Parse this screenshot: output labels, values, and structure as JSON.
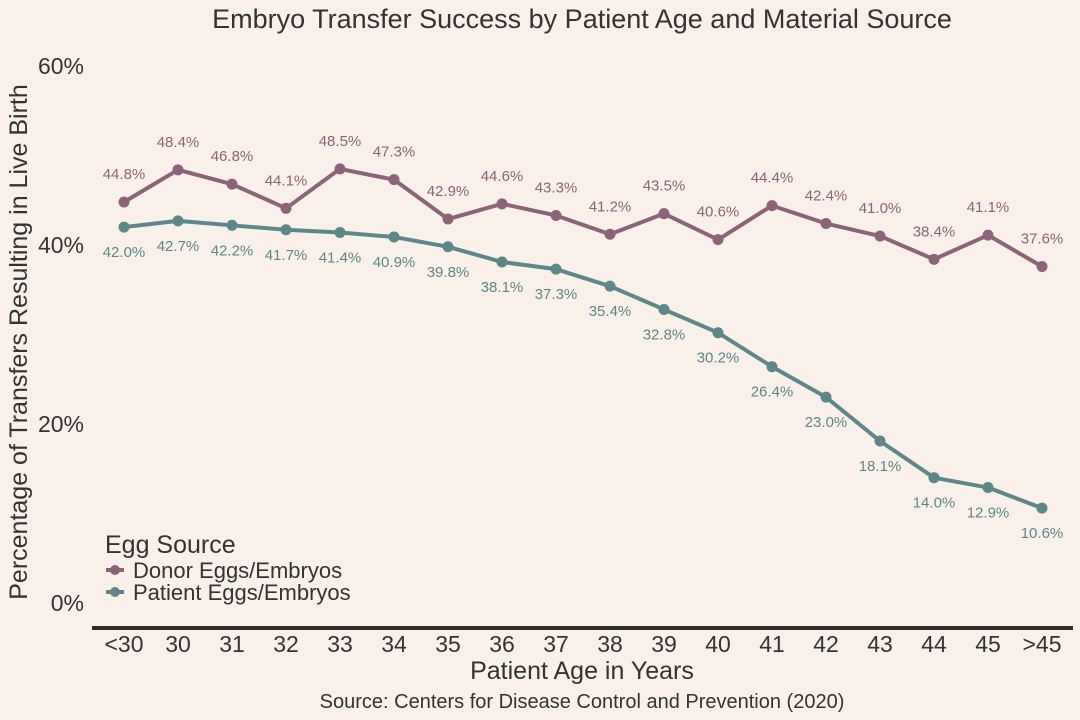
{
  "chart_data": {
    "type": "line",
    "title": "Embryo Transfer Success by Patient Age and Material Source",
    "xlabel": "Patient Age in Years",
    "ylabel": "Percentage of Transfers Resulting in Live Birth",
    "source": "Source: Centers for Disease Control and Prevention (2020)",
    "categories": [
      "<30",
      "30",
      "31",
      "32",
      "33",
      "34",
      "35",
      "36",
      "37",
      "38",
      "39",
      "40",
      "41",
      "42",
      "43",
      "44",
      "45",
      ">45"
    ],
    "ylim": [
      0,
      60
    ],
    "yticks": [
      0,
      20,
      40,
      60
    ],
    "ytick_labels": [
      "0%",
      "20%",
      "40%",
      "60%"
    ],
    "grid": false,
    "legend": {
      "title": "Egg Source",
      "position": "bottom-left"
    },
    "series": [
      {
        "name": "Donor Eggs/Embryos",
        "color": "#8c6479",
        "label_position": "above",
        "values": [
          44.8,
          48.4,
          46.8,
          44.1,
          48.5,
          47.3,
          42.9,
          44.6,
          43.3,
          41.2,
          43.5,
          40.6,
          44.4,
          42.4,
          41.0,
          38.4,
          41.1,
          37.6
        ]
      },
      {
        "name": "Patient Eggs/Embryos",
        "color": "#5e878a",
        "label_position": "below",
        "values": [
          42.0,
          42.7,
          42.2,
          41.7,
          41.4,
          40.9,
          39.8,
          38.1,
          37.3,
          35.4,
          32.8,
          30.2,
          26.4,
          23.0,
          18.1,
          14.0,
          12.9,
          10.6
        ]
      }
    ]
  }
}
